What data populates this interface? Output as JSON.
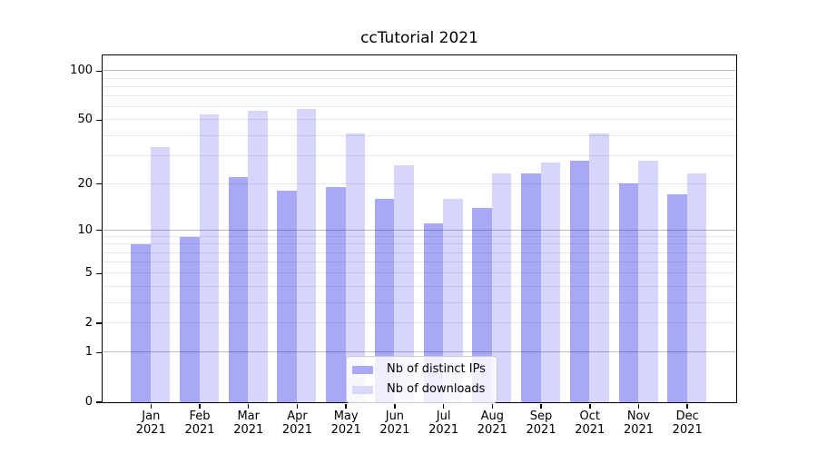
{
  "figure": {
    "background": "#ffffff"
  },
  "chart_data": {
    "type": "bar",
    "title": "ccTutorial 2021",
    "categories": [
      "Jan",
      "Feb",
      "Mar",
      "Apr",
      "May",
      "Jun",
      "Jul",
      "Aug",
      "Sep",
      "Oct",
      "Nov",
      "Dec"
    ],
    "year_label": "2021",
    "series": [
      {
        "name": "Nb of distinct IPs",
        "color": "#a8a8f6",
        "fill": "rgba(0,0,229,0.34)",
        "values": [
          8,
          9,
          22,
          18,
          19,
          16,
          11,
          14,
          23,
          28,
          20,
          17
        ]
      },
      {
        "name": "Nb of downloads",
        "color": "#d8d8fa",
        "fill": "rgba(0,0,225,0.16)",
        "values": [
          34,
          54,
          57,
          58,
          41,
          26,
          16,
          23,
          27,
          41,
          28,
          23
        ]
      }
    ],
    "y_axis": {
      "scale": "log1p",
      "ylim": [
        0,
        125
      ],
      "ticks": [
        {
          "label": "100",
          "value": 100
        },
        {
          "label": "50",
          "value": 50
        },
        {
          "label": "20",
          "value": 20
        },
        {
          "label": "10",
          "value": 10
        },
        {
          "label": "5",
          "value": 5
        },
        {
          "label": "2",
          "value": 2
        },
        {
          "label": "1",
          "value": 1
        },
        {
          "label": "0",
          "value": 0
        }
      ],
      "minor_grid": [
        3,
        4,
        6,
        7,
        8,
        9,
        30,
        40,
        60,
        70,
        80,
        90
      ],
      "major_grid": [
        1,
        10,
        100
      ],
      "grid_color_minor": "#e7e7e7",
      "grid_color_major": "#bcbcbc"
    },
    "legend": {
      "position": "lower center"
    }
  }
}
